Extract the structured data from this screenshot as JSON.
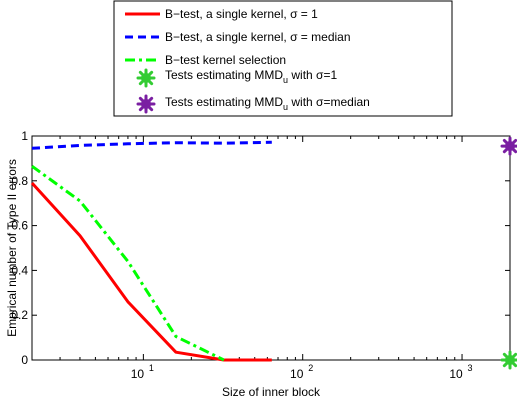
{
  "chart_data": {
    "type": "line",
    "xscale": "log",
    "xlim": [
      2,
      2000
    ],
    "ylim": [
      0,
      1
    ],
    "xlabel": "Size of inner block",
    "ylabel": "Emprical number of Type II errors",
    "xticks": [
      {
        "value": 10,
        "base": "10",
        "exp": "1"
      },
      {
        "value": 100,
        "base": "10",
        "exp": "2"
      },
      {
        "value": 1000,
        "base": "10",
        "exp": "3"
      }
    ],
    "yticks": [
      {
        "value": 0,
        "label": "0"
      },
      {
        "value": 0.2,
        "label": "0.2"
      },
      {
        "value": 0.4,
        "label": "0.4"
      },
      {
        "value": 0.6,
        "label": "0.6"
      },
      {
        "value": 0.8,
        "label": "0.8"
      },
      {
        "value": 1,
        "label": "1"
      }
    ],
    "grid": false,
    "legend_position": "top",
    "series": [
      {
        "key": "sigma1",
        "name": "B−test, a single kernel, σ = 1",
        "color": "#ff0000",
        "style": "solid",
        "x": [
          2,
          4,
          8,
          16,
          32,
          64
        ],
        "y": [
          0.79,
          0.555,
          0.26,
          0.035,
          0.0,
          0.0
        ]
      },
      {
        "key": "median",
        "name": "B−test, a single kernel, σ = median",
        "color": "#0000ff",
        "style": "dashed",
        "x": [
          2,
          4,
          8,
          16,
          32,
          64
        ],
        "y": [
          0.945,
          0.958,
          0.965,
          0.97,
          0.968,
          0.972
        ]
      },
      {
        "key": "selection",
        "name": "B−test kernel selection",
        "color": "#00ff00",
        "style": "dashdot",
        "x": [
          2,
          4,
          8,
          16,
          32
        ],
        "y": [
          0.865,
          0.71,
          0.44,
          0.105,
          0.0
        ]
      }
    ],
    "markers": [
      {
        "key": "mmd_sigma1",
        "name_prefix": "Tests estimating MMD",
        "name_sub": "u",
        "name_suffix": " with σ=1",
        "color": "#33cc33",
        "x": 2000,
        "y": 0.0
      },
      {
        "key": "mmd_median",
        "name_prefix": "Tests estimating MMD",
        "name_sub": "u",
        "name_suffix": " with σ=median",
        "color": "#7a1fa2",
        "x": 2000,
        "y": 0.955
      }
    ]
  }
}
